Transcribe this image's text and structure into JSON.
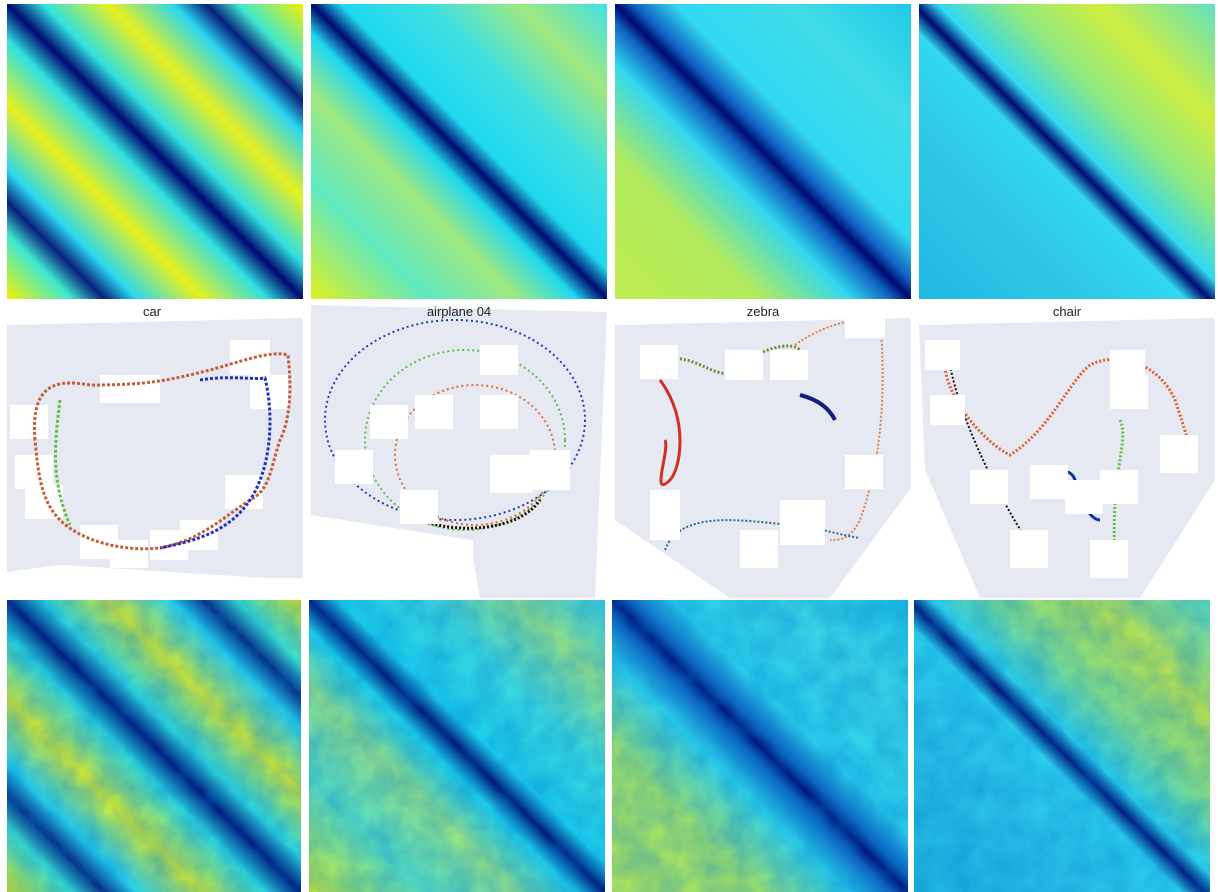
{
  "panels": [
    {
      "label": "car"
    },
    {
      "label": "airplane 04"
    },
    {
      "label": "zebra"
    },
    {
      "label": "chair"
    }
  ]
}
